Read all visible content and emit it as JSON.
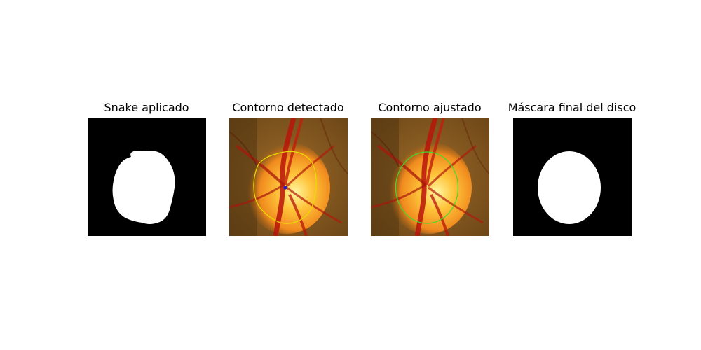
{
  "panels": [
    {
      "id": "snake",
      "title": "Snake aplicado"
    },
    {
      "id": "contour-detected",
      "title": "Contorno detectado"
    },
    {
      "id": "contour-adjusted",
      "title": "Contorno ajustado"
    },
    {
      "id": "final-mask",
      "title": "Máscara final del disco"
    }
  ],
  "colors": {
    "background": "#ffffff",
    "mask_background": "#000000",
    "mask_foreground": "#ffffff",
    "detected_contour": "#e6e000",
    "adjusted_contour": "#3fdc2a",
    "center_marker": "#1a1acc"
  }
}
